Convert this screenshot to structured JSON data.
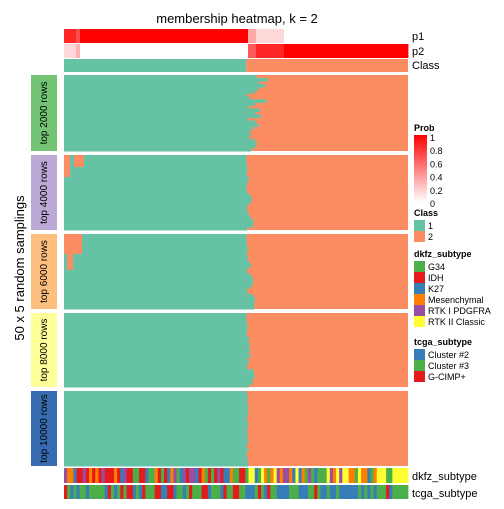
{
  "chart_data": {
    "type": "heatmap",
    "title": "membership heatmap, k = 2",
    "y_axis_label": "50 x 5 random samplings",
    "row_groups": [
      {
        "label": "top 2000 rows",
        "color": "#74C476"
      },
      {
        "label": "top 4000 rows",
        "color": "#BCA9D6"
      },
      {
        "label": "top 6000 rows",
        "color": "#FDBF7F"
      },
      {
        "label": "top 8000 rows",
        "color": "#FFFF99"
      },
      {
        "label": "top 10000 rows",
        "color": "#386CB0"
      }
    ],
    "top_annotations": [
      {
        "label": "p1"
      },
      {
        "label": "p2"
      },
      {
        "label": "Class"
      }
    ],
    "bottom_annotations": [
      {
        "label": "dkfz_subtype"
      },
      {
        "label": "tcga_subtype"
      }
    ],
    "class_colors": {
      "1": "#66C2A5",
      "2": "#FC8D62"
    },
    "class_split_fraction": 0.53,
    "legends": [
      {
        "title": "Prob",
        "type": "gradient",
        "ticks": [
          "1",
          "0.8",
          "0.6",
          "0.4",
          "0.2",
          "0"
        ],
        "colors": [
          "#FF0000",
          "#FFFFFF"
        ]
      },
      {
        "title": "Class",
        "type": "discrete",
        "items": [
          {
            "label": "1",
            "color": "#66C2A5"
          },
          {
            "label": "2",
            "color": "#FC8D62"
          }
        ]
      },
      {
        "title": "dkfz_subtype",
        "type": "discrete",
        "items": [
          {
            "label": "G34",
            "color": "#4DAF4A"
          },
          {
            "label": "IDH",
            "color": "#E41A1C"
          },
          {
            "label": "K27",
            "color": "#377EB8"
          },
          {
            "label": "Mesenchymal",
            "color": "#FF7F00"
          },
          {
            "label": "RTK I PDGFRA",
            "color": "#984EA3"
          },
          {
            "label": "RTK II Classic",
            "color": "#FFFF33"
          }
        ]
      },
      {
        "title": "tcga_subtype",
        "type": "discrete",
        "items": [
          {
            "label": "Cluster #2",
            "color": "#377EB8"
          },
          {
            "label": "Cluster #3",
            "color": "#4DAF4A"
          },
          {
            "label": "G-CIMP+",
            "color": "#E41A1C"
          }
        ]
      }
    ]
  }
}
